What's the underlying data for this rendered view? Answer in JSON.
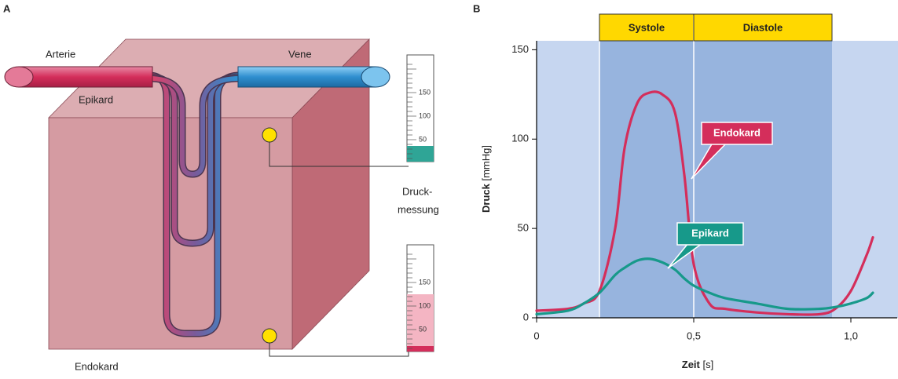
{
  "panel_a": {
    "label": "A",
    "artery": "Arterie",
    "vein": "Vene",
    "epicardium": "Epikard",
    "endocardium": "Endokard",
    "measurement": [
      "Druck-",
      "messung"
    ],
    "gauges": [
      [
        "150",
        "100",
        "50"
      ],
      [
        "150",
        "100",
        "50"
      ]
    ]
  },
  "chart_data": {
    "type": "line",
    "panel_label": "B",
    "x_label": "Zeit",
    "x_unit": "[s]",
    "y_label": "Druck",
    "y_unit": "[mmHg]",
    "x": [
      0,
      0.1,
      0.15,
      0.2,
      0.25,
      0.28,
      0.32,
      0.36,
      0.4,
      0.44,
      0.47,
      0.5,
      0.55,
      0.6,
      0.7,
      0.8,
      0.9,
      0.95,
      1.0,
      1.05,
      1.07
    ],
    "series": [
      {
        "name": "Endokard",
        "color": "#d42e5b",
        "values": [
          4,
          5,
          8,
          15,
          50,
          95,
          120,
          126,
          125,
          115,
          80,
          30,
          8,
          5,
          3,
          2,
          2,
          5,
          15,
          35,
          45
        ]
      },
      {
        "name": "Epikard",
        "color": "#17998a",
        "values": [
          2,
          4,
          8,
          14,
          24,
          28,
          32,
          33,
          31,
          27,
          22,
          18,
          14,
          11,
          8,
          5,
          5,
          6,
          8,
          11,
          14
        ]
      }
    ],
    "phases": [
      {
        "label": "Systole",
        "start": 0.2,
        "end": 0.5
      },
      {
        "label": "Diastole",
        "start": 0.5,
        "end": 0.94
      }
    ],
    "xlim": [
      0,
      1.14
    ],
    "ylim": [
      0,
      155
    ],
    "xticks": [
      0,
      {
        "value": 0.5,
        "label": "0,5"
      },
      {
        "value": 1.0,
        "label": "1,0"
      }
    ],
    "yticks": [
      0,
      50,
      100,
      150
    ]
  }
}
